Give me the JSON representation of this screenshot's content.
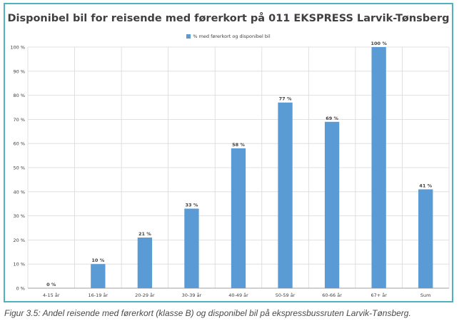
{
  "chart_data": {
    "type": "bar",
    "title": "Disponibel bil for reisende med førerkort på 011 EKSPRESS Larvik-Tønsberg",
    "categories": [
      "4-15 år",
      "16-19 år",
      "20-29 år",
      "30-39 år",
      "40-49 år",
      "50-59 år",
      "60-66 år",
      "67+ år",
      "Sum"
    ],
    "series": [
      {
        "name": "% med førerkort og disponibel bil",
        "values": [
          0,
          10,
          21,
          33,
          58,
          77,
          69,
          100,
          41
        ],
        "data_labels": [
          "0 %",
          "10 %",
          "21 %",
          "33 %",
          "58 %",
          "77 %",
          "69 %",
          "100 %",
          "41 %"
        ],
        "color": "#5b9bd5"
      }
    ],
    "y_ticks": [
      "0 %",
      "10 %",
      "20 %",
      "30 %",
      "40 %",
      "50 %",
      "60 %",
      "70 %",
      "80 %",
      "90 %",
      "100 %"
    ],
    "ylim": [
      0,
      100
    ],
    "grid": true,
    "legend_position": "top-center"
  },
  "caption": "Figur 3.5: Andel reisende med førerkort (klasse B) og disponibel bil på ekspressbussruten Larvik-Tønsberg."
}
